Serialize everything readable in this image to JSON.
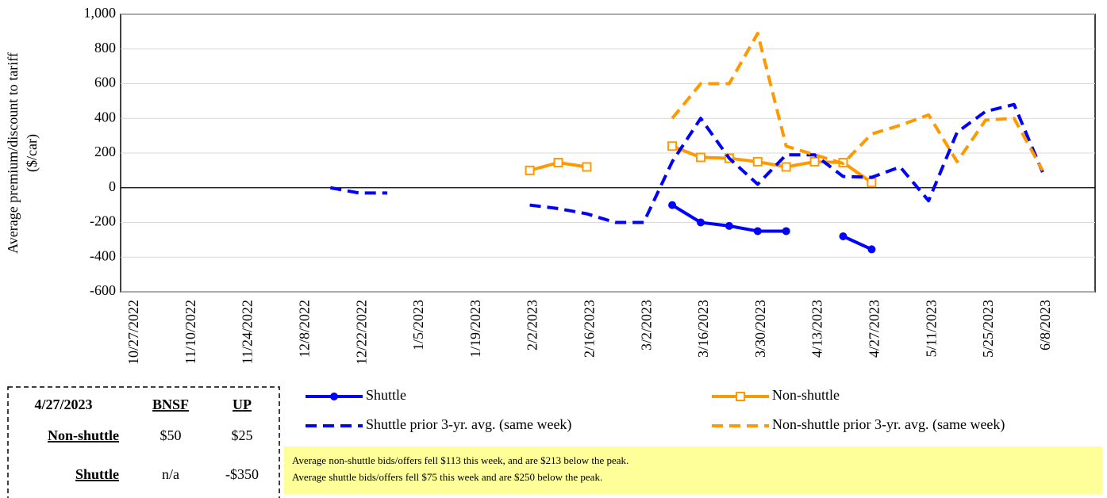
{
  "chart_data": {
    "type": "line",
    "ylabel": [
      "Average premium/discount  to tariff",
      "($/car)"
    ],
    "categories": [
      "10/27/2022",
      null,
      "11/10/2022",
      null,
      "11/24/2022",
      null,
      "12/8/2022",
      null,
      "12/22/2022",
      null,
      "1/5/2023",
      null,
      "1/19/2023",
      null,
      "2/2/2023",
      null,
      "2/16/2023",
      null,
      "3/2/2023",
      null,
      "3/16/2023",
      null,
      "3/30/2023",
      null,
      "4/13/2023",
      null,
      "4/27/2023",
      null,
      "5/11/2023",
      null,
      "5/25/2023",
      null,
      "6/8/2023"
    ],
    "ylim": [
      -600,
      1000
    ],
    "yticks": [
      {
        "value": 1000,
        "label": "1,000"
      },
      800,
      600,
      400,
      200,
      0,
      -200,
      -400,
      -600
    ],
    "series": [
      {
        "name": "Shuttle",
        "color": "#0000ff",
        "dash": false,
        "marker": "circle",
        "values": [
          null,
          null,
          null,
          null,
          null,
          null,
          null,
          null,
          null,
          null,
          null,
          null,
          null,
          null,
          null,
          null,
          null,
          null,
          null,
          -100,
          -200,
          -220,
          -250,
          -250,
          null,
          -280,
          -355,
          null,
          null,
          null,
          null,
          null,
          null
        ]
      },
      {
        "name": "Non-shuttle",
        "color": "#ff9900",
        "dash": false,
        "marker": "square",
        "values": [
          null,
          null,
          null,
          null,
          null,
          null,
          null,
          null,
          null,
          null,
          null,
          null,
          null,
          null,
          100,
          145,
          120,
          null,
          null,
          240,
          175,
          170,
          150,
          120,
          150,
          145,
          30,
          null,
          null,
          null,
          null,
          null,
          null
        ]
      },
      {
        "name": "Shuttle prior 3-yr. avg. (same week)",
        "color": "#0000ff",
        "dash": true,
        "marker": null,
        "values": [
          null,
          null,
          null,
          null,
          null,
          null,
          null,
          0,
          -30,
          -30,
          null,
          null,
          null,
          null,
          -100,
          -120,
          -150,
          -200,
          -200,
          150,
          400,
          170,
          20,
          190,
          190,
          65,
          60,
          120,
          -75,
          320,
          440,
          480,
          90
        ]
      },
      {
        "name": "Non-shuttle prior 3-yr. avg. (same week)",
        "color": "#ff9900",
        "dash": true,
        "marker": null,
        "values": [
          null,
          null,
          null,
          null,
          null,
          null,
          null,
          null,
          null,
          null,
          null,
          null,
          null,
          null,
          null,
          null,
          null,
          null,
          null,
          400,
          600,
          600,
          890,
          240,
          190,
          140,
          310,
          360,
          420,
          150,
          390,
          400,
          100
        ]
      }
    ]
  },
  "summary_table": {
    "header": [
      "4/27/2023",
      "BNSF",
      "UP"
    ],
    "rows": [
      [
        "Non-shuttle",
        "$50",
        "$25"
      ],
      [
        "Shuttle",
        "n/a",
        "-$350"
      ]
    ]
  },
  "notes": [
    "Average non-shuttle bids/offers fell $113 this week, and are $213 below the peak.",
    "Average shuttle bids/offers fell $75 this week and are $250 below the peak."
  ]
}
